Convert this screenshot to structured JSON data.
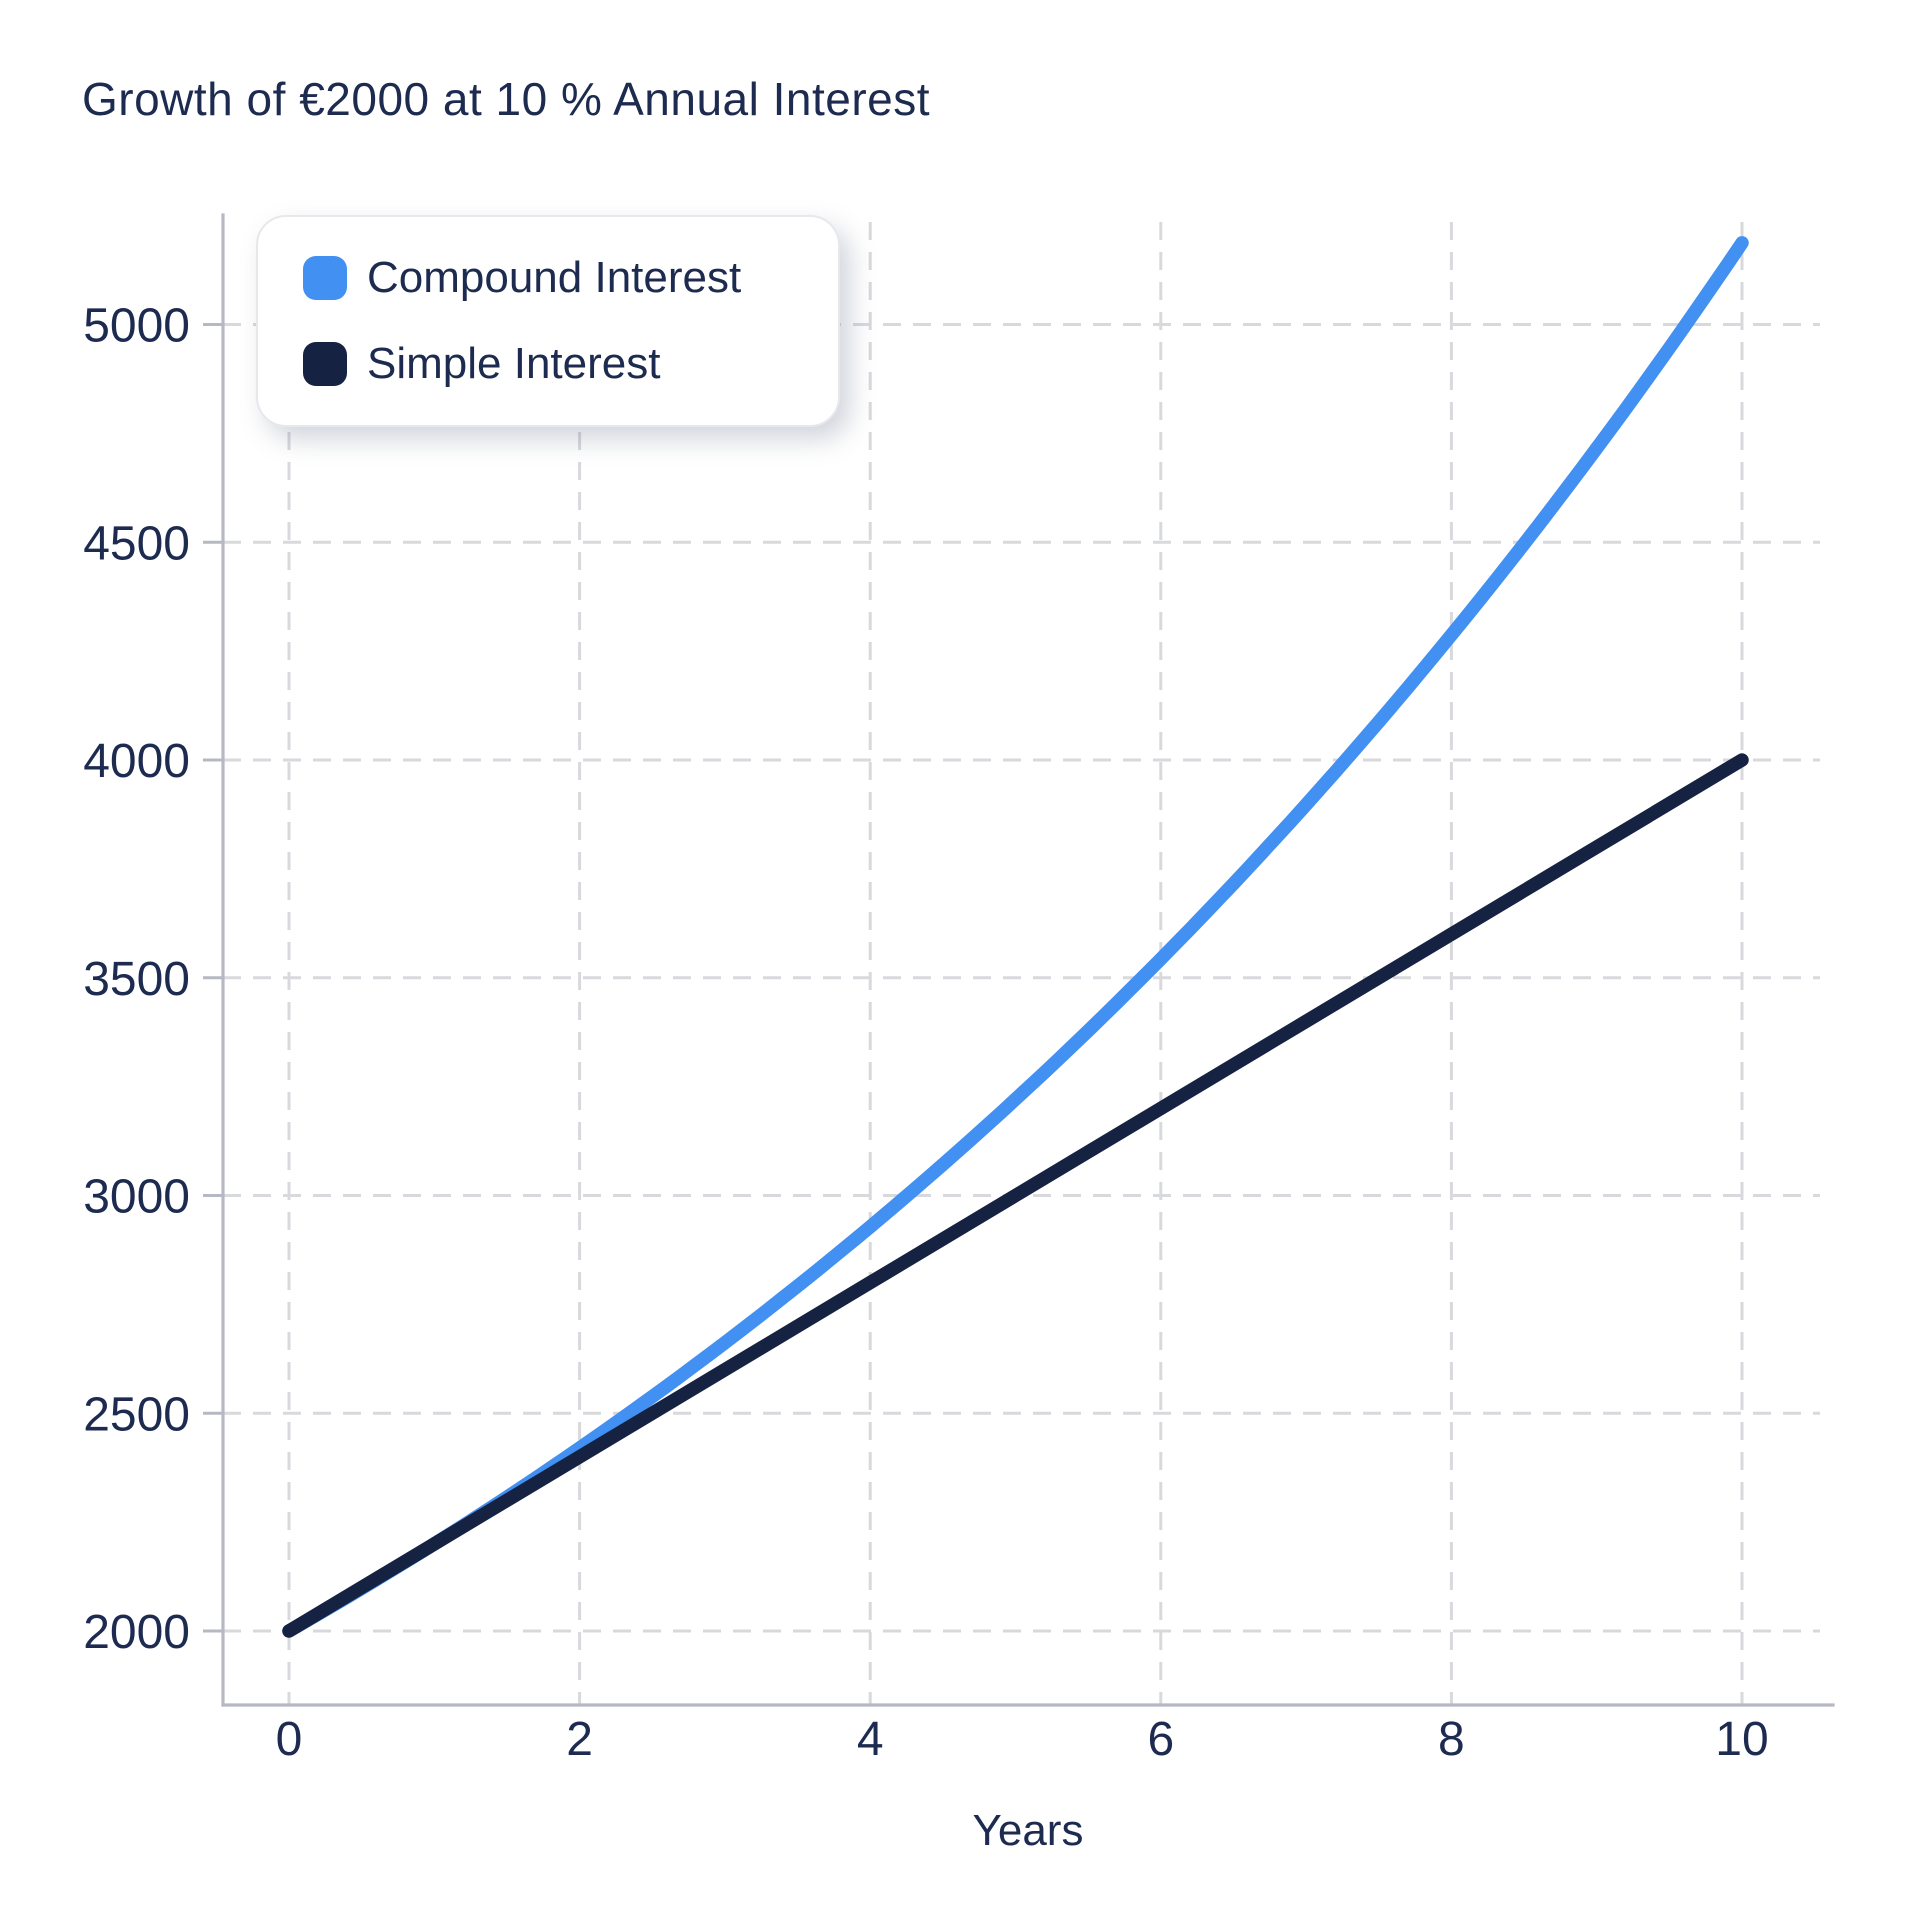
{
  "chart_data": {
    "type": "line",
    "title": "Growth of €2000 at 10 % Annual Interest",
    "xlabel": "Years",
    "ylabel": "",
    "x_ticks": [
      0,
      2,
      4,
      6,
      8,
      10
    ],
    "y_ticks": [
      2000,
      2500,
      3000,
      3500,
      4000,
      4500,
      5000
    ],
    "xlim": [
      -0.45,
      10.55
    ],
    "ylim": [
      1840,
      5250
    ],
    "grid": true,
    "grid_style": "dashed",
    "legend_position": "top-left",
    "x": [
      0,
      1,
      2,
      3,
      4,
      5,
      6,
      7,
      8,
      9,
      10
    ],
    "series": [
      {
        "name": "Compound Interest",
        "color": "#4190F2",
        "curve": "exponential",
        "values": [
          2000,
          2200,
          2420,
          2662,
          2928.2,
          3221.02,
          3543.12,
          3897.43,
          4287.18,
          4715.9,
          5187.48
        ]
      },
      {
        "name": "Simple Interest",
        "color": "#152241",
        "curve": "linear",
        "values": [
          2000,
          2200,
          2400,
          2600,
          2800,
          3000,
          3200,
          3400,
          3600,
          3800,
          4000
        ]
      }
    ],
    "colors": {
      "background": "#FFFFFF",
      "grid": "#D8D9DD",
      "spine": "#B6B9C4",
      "text": "#1C2B4F"
    }
  }
}
